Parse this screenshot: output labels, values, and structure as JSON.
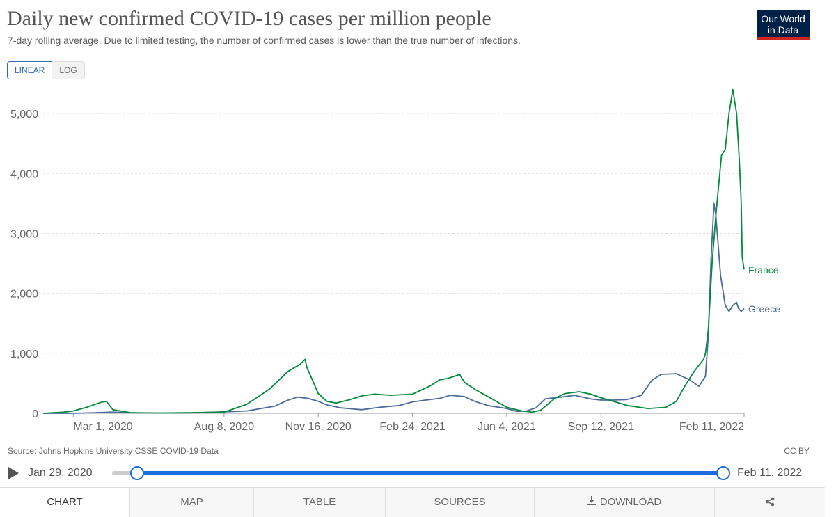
{
  "header": {
    "title": "Daily new confirmed COVID-19 cases per million people",
    "subtitle": "7-day rolling average. Due to limited testing, the number of confirmed cases is lower than the true number of infections.",
    "logo_line1": "Our World",
    "logo_line2": "in Data"
  },
  "scale_toggle": {
    "linear": "LINEAR",
    "log": "LOG",
    "active": "LINEAR"
  },
  "chart_data": {
    "type": "line",
    "title": "Daily new confirmed COVID-19 cases per million people",
    "subtitle": "7-day rolling average. Due to limited testing, the number of confirmed cases is lower than the true number of infections.",
    "xlabel": "",
    "ylabel": "",
    "ylim": [
      0,
      5500
    ],
    "xlim": [
      "2020-01-29",
      "2022-02-11"
    ],
    "y_ticks": [
      0,
      1000,
      2000,
      3000,
      4000,
      5000
    ],
    "y_tick_labels": [
      "0",
      "1,000",
      "2,000",
      "3,000",
      "4,000",
      "5,000"
    ],
    "x_ticks": [
      "2020-03-01",
      "2020-08-08",
      "2020-11-16",
      "2021-02-24",
      "2021-06-04",
      "2021-09-12",
      "2022-02-11"
    ],
    "x_tick_labels": [
      "Mar 1, 2020",
      "Aug 8, 2020",
      "Nov 16, 2020",
      "Feb 24, 2021",
      "Jun 4, 2021",
      "Sep 12, 2021",
      "Feb 11, 2022"
    ],
    "grid": "horizontal dashed",
    "legend": "inline labels at line ends",
    "colors": {
      "France": "#008a3b",
      "Greece": "#4c6a9c"
    },
    "series": [
      {
        "name": "France",
        "x": [
          "2020-01-29",
          "2020-02-20",
          "2020-03-01",
          "2020-03-15",
          "2020-03-28",
          "2020-04-01",
          "2020-04-05",
          "2020-04-12",
          "2020-05-01",
          "2020-06-01",
          "2020-07-01",
          "2020-08-08",
          "2020-09-01",
          "2020-09-25",
          "2020-10-15",
          "2020-10-28",
          "2020-11-02",
          "2020-11-04",
          "2020-11-08",
          "2020-11-16",
          "2020-11-25",
          "2020-12-05",
          "2020-12-20",
          "2021-01-01",
          "2021-01-15",
          "2021-02-01",
          "2021-02-24",
          "2021-03-15",
          "2021-03-25",
          "2021-04-02",
          "2021-04-10",
          "2021-04-15",
          "2021-04-20",
          "2021-05-01",
          "2021-05-15",
          "2021-06-04",
          "2021-06-20",
          "2021-07-01",
          "2021-07-10",
          "2021-07-25",
          "2021-08-05",
          "2021-08-20",
          "2021-09-01",
          "2021-09-12",
          "2021-09-25",
          "2021-10-10",
          "2021-11-01",
          "2021-11-20",
          "2021-12-01",
          "2021-12-10",
          "2021-12-20",
          "2021-12-25",
          "2021-12-30",
          "2022-01-01",
          "2022-01-04",
          "2022-01-08",
          "2022-01-12",
          "2022-01-18",
          "2022-01-22",
          "2022-01-26",
          "2022-01-30",
          "2022-02-03",
          "2022-02-06",
          "2022-02-08",
          "2022-02-09",
          "2022-02-11"
        ],
        "y": [
          0,
          20,
          40,
          100,
          170,
          190,
          200,
          60,
          10,
          5,
          10,
          20,
          150,
          400,
          700,
          820,
          900,
          760,
          620,
          330,
          200,
          170,
          230,
          290,
          320,
          300,
          320,
          460,
          560,
          580,
          620,
          650,
          520,
          400,
          280,
          100,
          40,
          20,
          50,
          250,
          330,
          360,
          320,
          260,
          200,
          130,
          80,
          100,
          200,
          450,
          700,
          800,
          900,
          1000,
          1400,
          2500,
          3300,
          4300,
          4400,
          5000,
          5400,
          5000,
          4200,
          3500,
          2600,
          2400
        ]
      },
      {
        "name": "Greece",
        "x": [
          "2020-01-29",
          "2020-02-28",
          "2020-03-25",
          "2020-04-10",
          "2020-05-01",
          "2020-06-01",
          "2020-07-01",
          "2020-08-08",
          "2020-09-01",
          "2020-10-01",
          "2020-10-15",
          "2020-10-25",
          "2020-11-05",
          "2020-11-16",
          "2020-11-25",
          "2020-12-10",
          "2021-01-01",
          "2021-01-20",
          "2021-02-10",
          "2021-02-24",
          "2021-03-10",
          "2021-03-25",
          "2021-04-05",
          "2021-04-20",
          "2021-05-01",
          "2021-05-15",
          "2021-06-04",
          "2021-06-15",
          "2021-06-25",
          "2021-07-05",
          "2021-07-15",
          "2021-07-25",
          "2021-08-01",
          "2021-08-15",
          "2021-09-01",
          "2021-09-12",
          "2021-09-25",
          "2021-10-10",
          "2021-10-25",
          "2021-11-05",
          "2021-11-15",
          "2021-12-01",
          "2021-12-15",
          "2021-12-25",
          "2022-01-01",
          "2022-01-04",
          "2022-01-07",
          "2022-01-10",
          "2022-01-12",
          "2022-01-17",
          "2022-01-22",
          "2022-01-26",
          "2022-01-30",
          "2022-02-03",
          "2022-02-05",
          "2022-02-08",
          "2022-02-11"
        ],
        "y": [
          0,
          0,
          10,
          20,
          10,
          5,
          5,
          25,
          40,
          120,
          220,
          270,
          250,
          200,
          140,
          90,
          60,
          100,
          130,
          190,
          220,
          250,
          300,
          280,
          200,
          130,
          80,
          30,
          40,
          90,
          240,
          260,
          270,
          300,
          240,
          220,
          220,
          230,
          300,
          550,
          650,
          660,
          560,
          450,
          620,
          1300,
          2600,
          3500,
          3300,
          2300,
          1800,
          1700,
          1800,
          1850,
          1750,
          1700,
          1750
        ]
      }
    ],
    "series_labels": [
      "France",
      "Greece"
    ]
  },
  "footer": {
    "source": "Source: Johns Hopkins University CSSE COVID-19 Data",
    "license": "CC BY"
  },
  "timeline": {
    "start_label": "Jan 29, 2020",
    "end_label": "Feb 11, 2022"
  },
  "tabs": [
    {
      "label": "CHART",
      "icon": ""
    },
    {
      "label": "MAP",
      "icon": ""
    },
    {
      "label": "TABLE",
      "icon": ""
    },
    {
      "label": "SOURCES",
      "icon": ""
    },
    {
      "label": "DOWNLOAD",
      "icon": "download-icon"
    },
    {
      "label": "",
      "icon": "share-icon"
    }
  ]
}
